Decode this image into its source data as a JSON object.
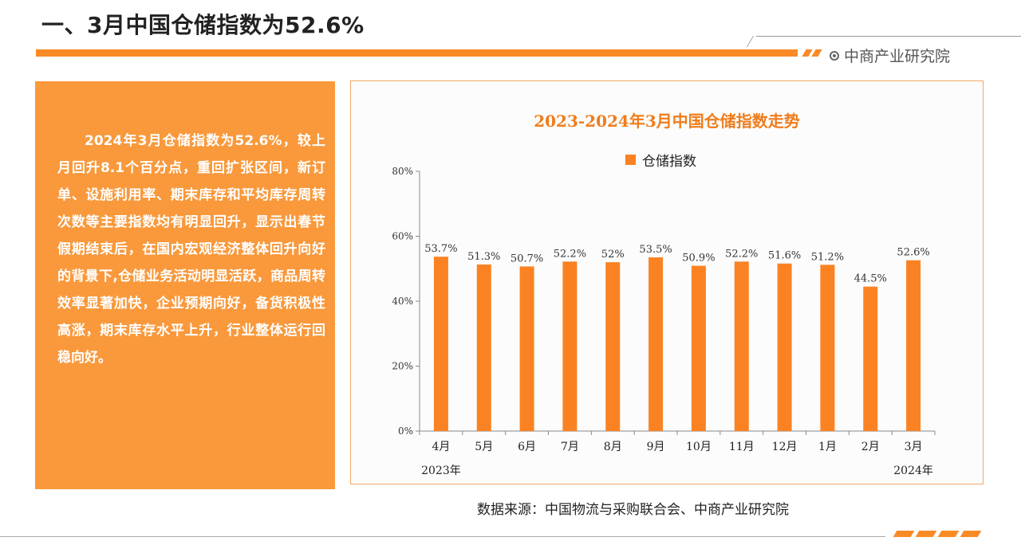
{
  "header": {
    "title": "一、3月中国仓储指数为52.6%",
    "brand": "中商产业研究院",
    "brand_icon": "target-circle-icon",
    "accent_color": "#f98a26"
  },
  "summary": {
    "text": "2024年3月仓储指数为52.6%，较上月回升8.1个百分点，重回扩张区间，新订单、设施利用率、期末库存和平均库存周转次数等主要指数均有明显回升，显示出春节假期结束后，在国内宏观经济整体回升向好的背景下,仓储业务活动明显活跃，商品周转效率显著加快，企业预期向好，备货积极性高涨，期末库存水平上升，行业整体运行回稳向好。"
  },
  "chart_data": {
    "type": "bar",
    "title": "2023-2024年3月中国仓储指数走势",
    "categories": [
      "4月",
      "5月",
      "6月",
      "7月",
      "8月",
      "9月",
      "10月",
      "11月",
      "12月",
      "1月",
      "2月",
      "3月"
    ],
    "series": [
      {
        "name": "仓储指数",
        "values": [
          53.7,
          51.3,
          50.7,
          52.2,
          52,
          53.5,
          50.9,
          52.2,
          51.6,
          51.2,
          44.5,
          52.6
        ],
        "labels": [
          "53.7%",
          "51.3%",
          "50.7%",
          "52.2%",
          "52%",
          "53.5%",
          "50.9%",
          "52.2%",
          "51.6%",
          "51.2%",
          "44.5%",
          "52.6%"
        ],
        "color": "#fb8222"
      }
    ],
    "yticks": [
      "0%",
      "20%",
      "40%",
      "60%",
      "80%"
    ],
    "ylim": [
      0,
      80
    ],
    "year_labels": [
      "2023年",
      "2024年"
    ],
    "legend_position": "top",
    "grid": false
  },
  "footer": {
    "source": "数据来源：中国物流与采购联合会、中商产业研究院"
  }
}
